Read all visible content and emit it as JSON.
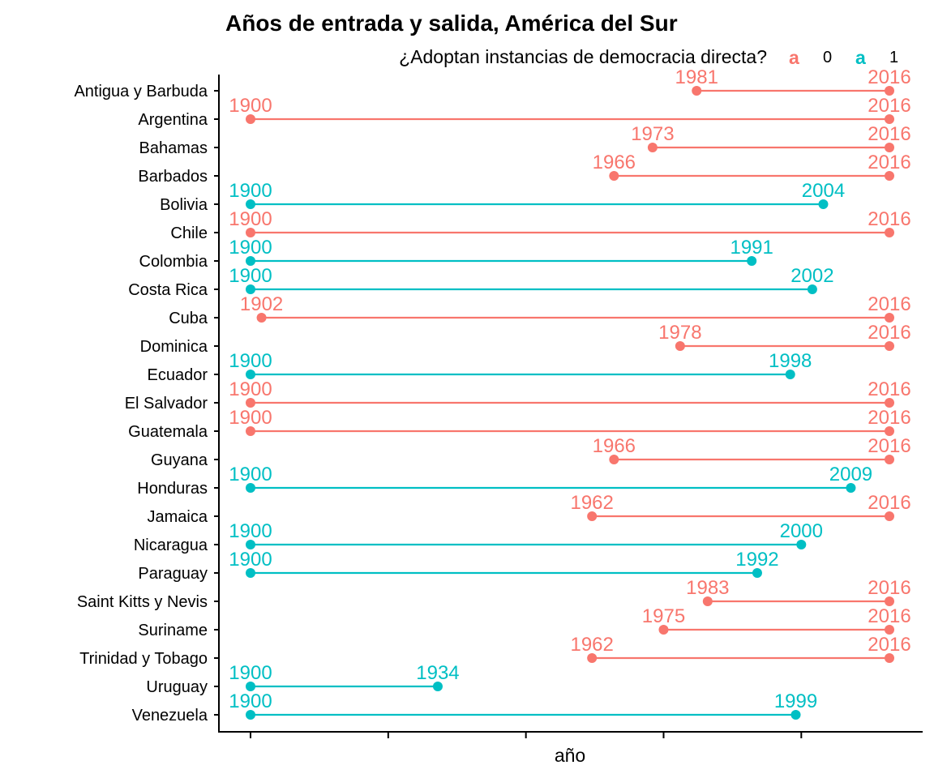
{
  "chart_data": {
    "type": "dumbbell",
    "title": "Años de entrada y salida, América del Sur",
    "xlabel": "año",
    "ylabel": "",
    "xlim": [
      1890,
      2022
    ],
    "x_ticks": [
      1900,
      1925,
      1950,
      1975,
      2000
    ],
    "x_tick_labels_visible": false,
    "grid": false,
    "legend": {
      "title": "¿Adoptan instancias de democracia directa?",
      "position": "top-right",
      "key_glyph": "a",
      "entries": [
        {
          "label": "0",
          "color": "#F8766D"
        },
        {
          "label": "1",
          "color": "#00BFC4"
        }
      ]
    },
    "categories": [
      "Antigua y Barbuda",
      "Argentina",
      "Bahamas",
      "Barbados",
      "Bolivia",
      "Chile",
      "Colombia",
      "Costa Rica",
      "Cuba",
      "Dominica",
      "Ecuador",
      "El Salvador",
      "Guatemala",
      "Guyana",
      "Honduras",
      "Jamaica",
      "Nicaragua",
      "Paraguay",
      "Saint Kitts y Nevis",
      "Suriname",
      "Trinidad y Tobago",
      "Uruguay",
      "Venezuela"
    ],
    "series": [
      {
        "name": "Antigua y Barbuda",
        "start": 1981,
        "end": 2016,
        "group": "0"
      },
      {
        "name": "Argentina",
        "start": 1900,
        "end": 2016,
        "group": "0"
      },
      {
        "name": "Bahamas",
        "start": 1973,
        "end": 2016,
        "group": "0"
      },
      {
        "name": "Barbados",
        "start": 1966,
        "end": 2016,
        "group": "0"
      },
      {
        "name": "Bolivia",
        "start": 1900,
        "end": 2004,
        "group": "1"
      },
      {
        "name": "Chile",
        "start": 1900,
        "end": 2016,
        "group": "0"
      },
      {
        "name": "Colombia",
        "start": 1900,
        "end": 1991,
        "group": "1"
      },
      {
        "name": "Costa Rica",
        "start": 1900,
        "end": 2002,
        "group": "1"
      },
      {
        "name": "Cuba",
        "start": 1902,
        "end": 2016,
        "group": "0"
      },
      {
        "name": "Dominica",
        "start": 1978,
        "end": 2016,
        "group": "0"
      },
      {
        "name": "Ecuador",
        "start": 1900,
        "end": 1998,
        "group": "1"
      },
      {
        "name": "El Salvador",
        "start": 1900,
        "end": 2016,
        "group": "0"
      },
      {
        "name": "Guatemala",
        "start": 1900,
        "end": 2016,
        "group": "0"
      },
      {
        "name": "Guyana",
        "start": 1966,
        "end": 2016,
        "group": "0"
      },
      {
        "name": "Honduras",
        "start": 1900,
        "end": 2009,
        "group": "1"
      },
      {
        "name": "Jamaica",
        "start": 1962,
        "end": 2016,
        "group": "0"
      },
      {
        "name": "Nicaragua",
        "start": 1900,
        "end": 2000,
        "group": "1"
      },
      {
        "name": "Paraguay",
        "start": 1900,
        "end": 1992,
        "group": "1"
      },
      {
        "name": "Saint Kitts y Nevis",
        "start": 1983,
        "end": 2016,
        "group": "0"
      },
      {
        "name": "Suriname",
        "start": 1975,
        "end": 2016,
        "group": "0"
      },
      {
        "name": "Trinidad y Tobago",
        "start": 1962,
        "end": 2016,
        "group": "0"
      },
      {
        "name": "Uruguay",
        "start": 1900,
        "end": 1934,
        "group": "1"
      },
      {
        "name": "Venezuela",
        "start": 1900,
        "end": 1999,
        "group": "1"
      }
    ],
    "colors": {
      "0": "#F8766D",
      "1": "#00BFC4"
    }
  }
}
